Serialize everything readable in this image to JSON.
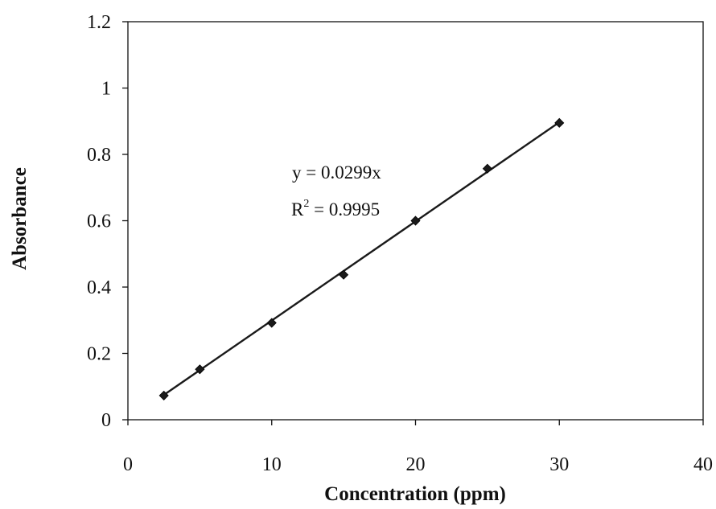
{
  "chart_data": {
    "type": "scatter",
    "title": "",
    "xlabel": "Concentration (ppm)",
    "ylabel": "Absorbance",
    "xlim": [
      0,
      40
    ],
    "ylim": [
      0,
      1.2
    ],
    "x_ticks": [
      0,
      10,
      20,
      30,
      40
    ],
    "y_ticks": [
      0,
      0.2,
      0.4,
      0.6,
      0.8,
      1,
      1.2
    ],
    "grid": false,
    "legend": "none",
    "series": [
      {
        "x": [
          2.5,
          5,
          10,
          15,
          20,
          25,
          30
        ],
        "y": [
          0.073,
          0.152,
          0.292,
          0.437,
          0.6,
          0.757,
          0.895
        ],
        "marker": "diamond",
        "color": "#1a1a1a"
      }
    ],
    "trendline": {
      "type": "linear",
      "slope": 0.0299,
      "intercept": 0,
      "x_range": [
        2.5,
        30
      ]
    },
    "annotations": {
      "equation": "y = 0.0299x",
      "r2_prefix": "R",
      "r2_superscript": "2",
      "r2_value": " = 0.9995"
    }
  }
}
